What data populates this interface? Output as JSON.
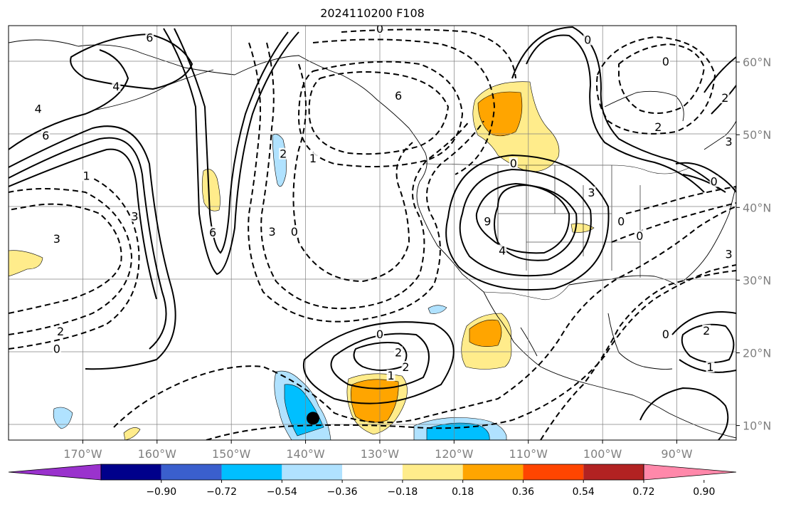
{
  "title": "2024110200 F108",
  "map": {
    "projection": "PlateCarree",
    "lon_range": [
      -180,
      -82
    ],
    "lat_range": [
      8,
      65
    ],
    "lon_ticks": [
      "170°W",
      "160°W",
      "150°W",
      "140°W",
      "130°W",
      "120°W",
      "110°W",
      "100°W",
      "90°W"
    ],
    "lat_ticks": [
      "60°N",
      "50°N",
      "40°N",
      "30°N",
      "20°N",
      "10°N"
    ],
    "gridlines": true,
    "tick_color": "#808080"
  },
  "colorbar": {
    "orientation": "horizontal",
    "extend": "both",
    "ticks": [
      "−0.90",
      "−0.72",
      "−0.54",
      "−0.36",
      "−0.18",
      "0.18",
      "0.36",
      "0.54",
      "0.72",
      "0.90"
    ],
    "colors": [
      "#9a32cd",
      "#00008b",
      "#3a5fcd",
      "#00bfff",
      "#b0e2ff",
      "#ffffff",
      "#ffec8b",
      "#ffa500",
      "#ff4500",
      "#b22222",
      "#ff88aa"
    ]
  },
  "contour_labels": [
    {
      "text": "6",
      "lon": -161.0,
      "lat": 63.3
    },
    {
      "text": "4",
      "lon": -165.5,
      "lat": 56.6
    },
    {
      "text": "4",
      "lon": -176.0,
      "lat": 53.5
    },
    {
      "text": "6",
      "lon": -175.0,
      "lat": 49.8
    },
    {
      "text": "1",
      "lon": -169.5,
      "lat": 44.3
    },
    {
      "text": "3",
      "lon": -163.0,
      "lat": 38.7
    },
    {
      "text": "3",
      "lon": -173.5,
      "lat": 35.6
    },
    {
      "text": "6",
      "lon": -152.5,
      "lat": 36.5
    },
    {
      "text": "3",
      "lon": -144.5,
      "lat": 36.6
    },
    {
      "text": "0",
      "lon": -141.5,
      "lat": 36.6
    },
    {
      "text": "2",
      "lon": -143.0,
      "lat": 47.3
    },
    {
      "text": "1",
      "lon": -139.0,
      "lat": 46.7
    },
    {
      "text": "0",
      "lon": -130.0,
      "lat": 64.5
    },
    {
      "text": "6",
      "lon": -127.5,
      "lat": 55.3
    },
    {
      "text": "0",
      "lon": -112.0,
      "lat": 46.0
    },
    {
      "text": "9",
      "lon": -115.5,
      "lat": 38.0
    },
    {
      "text": "4",
      "lon": -113.5,
      "lat": 34.0
    },
    {
      "text": "3",
      "lon": -101.5,
      "lat": 42.0
    },
    {
      "text": "0",
      "lon": -97.5,
      "lat": 38.0
    },
    {
      "text": "0",
      "lon": -95.0,
      "lat": 36.0
    },
    {
      "text": "0",
      "lon": -130.0,
      "lat": 22.5
    },
    {
      "text": "2",
      "lon": -127.5,
      "lat": 20.0
    },
    {
      "text": "2",
      "lon": -126.5,
      "lat": 18.0
    },
    {
      "text": "1",
      "lon": -128.5,
      "lat": 16.8
    },
    {
      "text": "2",
      "lon": -173.0,
      "lat": 22.9
    },
    {
      "text": "0",
      "lon": -173.5,
      "lat": 20.5
    },
    {
      "text": "0",
      "lon": -102.0,
      "lat": 63.0
    },
    {
      "text": "0",
      "lon": -91.5,
      "lat": 60.0
    },
    {
      "text": "2",
      "lon": -92.5,
      "lat": 51.0
    },
    {
      "text": "2",
      "lon": -83.5,
      "lat": 55.0
    },
    {
      "text": "3",
      "lon": -83.0,
      "lat": 49.0
    },
    {
      "text": "0",
      "lon": -85.0,
      "lat": 43.5
    },
    {
      "text": "3",
      "lon": -83.0,
      "lat": 33.5
    },
    {
      "text": "0",
      "lon": -91.5,
      "lat": 22.5
    },
    {
      "text": "2",
      "lon": -86.0,
      "lat": 23.0
    },
    {
      "text": "1",
      "lon": -85.5,
      "lat": 18.0
    }
  ],
  "markers": [
    {
      "name": "storm-center",
      "lon": -139.0,
      "lat": 11.0,
      "color": "#000000"
    }
  ]
}
